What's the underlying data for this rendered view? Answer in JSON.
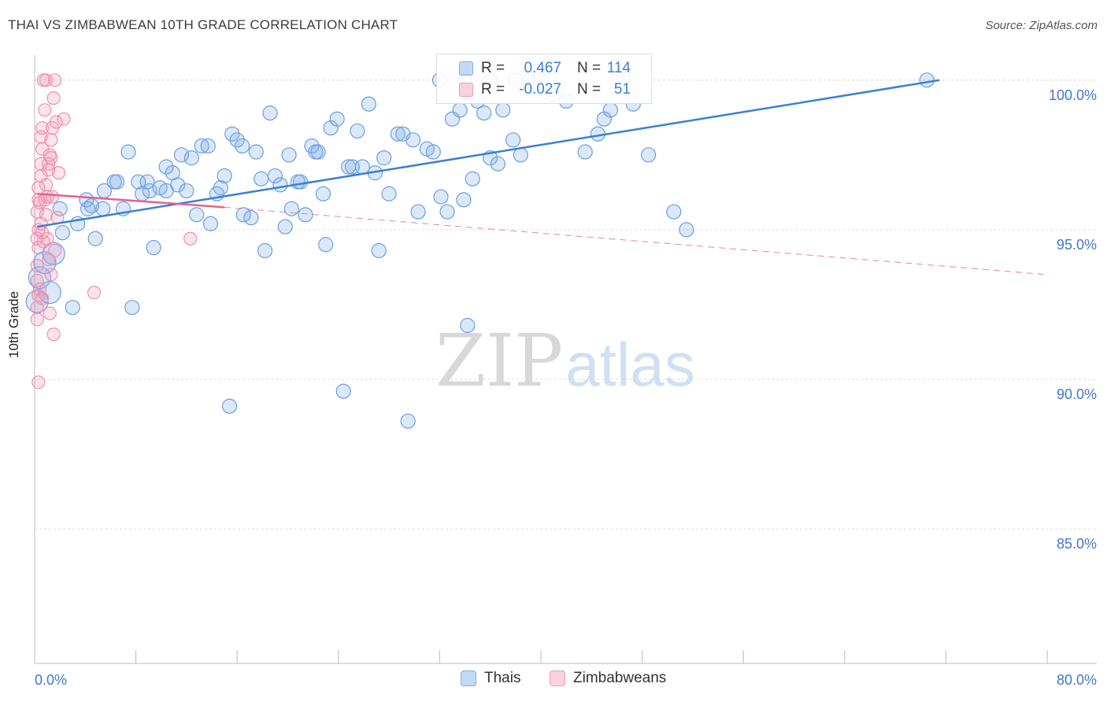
{
  "header": {
    "title": "THAI VS ZIMBABWEAN 10TH GRADE CORRELATION CHART",
    "source": "Source: ZipAtlas.com"
  },
  "watermark": {
    "part1": "ZIP",
    "part2": "atlas"
  },
  "stats": {
    "rows": [
      {
        "r_label": "R =",
        "r_value": "0.467",
        "n_label": "N =",
        "n_value": "114",
        "color": "#7aaee8"
      },
      {
        "r_label": "R =",
        "r_value": "-0.027",
        "n_label": "N =",
        "n_value": "51",
        "color": "#f29bb8"
      }
    ]
  },
  "legend": {
    "items": [
      {
        "label": "Thais",
        "color": "#7aaee8"
      },
      {
        "label": "Zimbabweans",
        "color": "#f29bb8"
      }
    ]
  },
  "colors": {
    "blue": "#3a7fd5",
    "pink": "#e8608c",
    "axis_text": "#4477cc"
  },
  "chart_data": {
    "type": "scatter",
    "title": "THAI VS ZIMBABWEAN 10TH GRADE CORRELATION CHART",
    "xlabel": "",
    "ylabel": "10th Grade",
    "xlim": [
      0,
      80
    ],
    "ylim": [
      80.5,
      100.6
    ],
    "x_tick_labels": [
      "0.0%",
      "80.0%"
    ],
    "y_ticks": [
      85,
      90,
      95,
      100
    ],
    "y_tick_labels": [
      "85.0%",
      "90.0%",
      "95.0%",
      "100.0%"
    ],
    "grid": true,
    "legend_position": "bottom",
    "series": [
      {
        "name": "Thais",
        "r": 0.467,
        "n": 114,
        "trend": {
          "x": [
            0.2,
            71.5
          ],
          "y": [
            95.1,
            100.0
          ],
          "style": "solid"
        },
        "points": [
          [
            0.2,
            92.6
          ],
          [
            0.4,
            93.4
          ],
          [
            0.8,
            93.9
          ],
          [
            1.2,
            92.9
          ],
          [
            1.5,
            94.2
          ],
          [
            2.0,
            95.7
          ],
          [
            2.2,
            94.9
          ],
          [
            3.0,
            92.4
          ],
          [
            3.4,
            95.2
          ],
          [
            4.2,
            95.7
          ],
          [
            4.8,
            94.7
          ],
          [
            4.1,
            96.0
          ],
          [
            4.5,
            95.8
          ],
          [
            5.4,
            95.7
          ],
          [
            5.5,
            96.3
          ],
          [
            6.3,
            96.6
          ],
          [
            6.5,
            96.6
          ],
          [
            7.0,
            95.7
          ],
          [
            7.4,
            97.6
          ],
          [
            7.7,
            92.4
          ],
          [
            8.2,
            96.6
          ],
          [
            8.5,
            96.2
          ],
          [
            8.9,
            96.6
          ],
          [
            9.1,
            96.3
          ],
          [
            9.4,
            94.4
          ],
          [
            9.9,
            96.4
          ],
          [
            10.4,
            96.3
          ],
          [
            10.4,
            97.1
          ],
          [
            10.9,
            96.9
          ],
          [
            11.3,
            96.5
          ],
          [
            11.6,
            97.5
          ],
          [
            12.0,
            96.3
          ],
          [
            12.4,
            97.4
          ],
          [
            12.8,
            95.5
          ],
          [
            13.2,
            97.8
          ],
          [
            13.7,
            97.8
          ],
          [
            13.9,
            95.2
          ],
          [
            14.4,
            96.2
          ],
          [
            14.7,
            96.4
          ],
          [
            15.0,
            96.8
          ],
          [
            15.4,
            89.1
          ],
          [
            15.6,
            98.2
          ],
          [
            16.0,
            98.0
          ],
          [
            16.4,
            97.8
          ],
          [
            16.5,
            95.5
          ],
          [
            17.1,
            95.4
          ],
          [
            17.5,
            97.6
          ],
          [
            17.9,
            96.7
          ],
          [
            18.2,
            94.3
          ],
          [
            18.6,
            98.9
          ],
          [
            19.0,
            96.8
          ],
          [
            19.4,
            96.5
          ],
          [
            19.8,
            95.1
          ],
          [
            20.1,
            97.5
          ],
          [
            20.3,
            95.7
          ],
          [
            20.8,
            96.6
          ],
          [
            21.0,
            96.6
          ],
          [
            21.4,
            95.5
          ],
          [
            21.9,
            97.8
          ],
          [
            22.2,
            97.6
          ],
          [
            22.4,
            97.6
          ],
          [
            22.8,
            96.2
          ],
          [
            23.0,
            94.5
          ],
          [
            23.4,
            98.4
          ],
          [
            23.9,
            98.7
          ],
          [
            24.4,
            89.6
          ],
          [
            24.8,
            97.1
          ],
          [
            25.1,
            97.1
          ],
          [
            25.5,
            98.3
          ],
          [
            25.9,
            97.1
          ],
          [
            26.4,
            99.2
          ],
          [
            26.9,
            96.9
          ],
          [
            27.2,
            94.3
          ],
          [
            27.6,
            97.4
          ],
          [
            28.0,
            96.2
          ],
          [
            28.7,
            98.2
          ],
          [
            29.1,
            98.2
          ],
          [
            29.5,
            88.6
          ],
          [
            29.9,
            98.0
          ],
          [
            30.3,
            95.6
          ],
          [
            31.0,
            97.7
          ],
          [
            31.5,
            97.6
          ],
          [
            32.1,
            96.1
          ],
          [
            32.6,
            95.6
          ],
          [
            33.0,
            98.7
          ],
          [
            33.6,
            99.0
          ],
          [
            33.9,
            96.0
          ],
          [
            34.2,
            91.8
          ],
          [
            34.6,
            96.7
          ],
          [
            35.0,
            99.3
          ],
          [
            35.5,
            98.9
          ],
          [
            36.0,
            97.4
          ],
          [
            36.6,
            97.2
          ],
          [
            37.0,
            99.0
          ],
          [
            37.8,
            98.0
          ],
          [
            38.4,
            97.5
          ],
          [
            39.0,
            100.0
          ],
          [
            40.0,
            100.0
          ],
          [
            41.0,
            99.5
          ],
          [
            42.0,
            99.3
          ],
          [
            43.5,
            97.6
          ],
          [
            44.5,
            98.2
          ],
          [
            45.0,
            98.7
          ],
          [
            45.5,
            99.0
          ],
          [
            46.5,
            100.0
          ],
          [
            47.3,
            99.2
          ],
          [
            48.5,
            97.5
          ],
          [
            50.5,
            95.6
          ],
          [
            51.5,
            95.0
          ],
          [
            70.5,
            100.0
          ],
          [
            32.0,
            100.0
          ],
          [
            34.0,
            100.0
          ],
          [
            36.0,
            100.0
          ],
          [
            38.0,
            100.0
          ]
        ]
      },
      {
        "name": "Zimbabweans",
        "r": -0.027,
        "n": 51,
        "trend": {
          "x": [
            0.2,
            15.0
          ],
          "y": [
            96.2,
            95.75
          ],
          "style": "solid"
        },
        "trend_extension": {
          "x": [
            15.0,
            80.0
          ],
          "y": [
            95.75,
            93.5
          ],
          "style": "dashed"
        },
        "points": [
          [
            0.2,
            95.6
          ],
          [
            0.3,
            95.0
          ],
          [
            0.2,
            94.7
          ],
          [
            0.3,
            94.4
          ],
          [
            0.2,
            93.8
          ],
          [
            0.2,
            93.3
          ],
          [
            0.3,
            92.8
          ],
          [
            0.2,
            92.4
          ],
          [
            0.2,
            92.0
          ],
          [
            0.3,
            89.9
          ],
          [
            0.3,
            96.0
          ],
          [
            0.3,
            96.4
          ],
          [
            0.5,
            96.8
          ],
          [
            0.5,
            97.2
          ],
          [
            0.6,
            97.7
          ],
          [
            0.5,
            98.1
          ],
          [
            0.6,
            98.4
          ],
          [
            0.8,
            99.0
          ],
          [
            0.7,
            100.0
          ],
          [
            0.9,
            100.0
          ],
          [
            1.0,
            96.1
          ],
          [
            1.1,
            97.2
          ],
          [
            1.2,
            97.5
          ],
          [
            1.3,
            98.0
          ],
          [
            1.4,
            98.4
          ],
          [
            1.5,
            99.4
          ],
          [
            1.6,
            100.0
          ],
          [
            1.7,
            98.6
          ],
          [
            0.4,
            95.9
          ],
          [
            0.8,
            96.0
          ],
          [
            0.9,
            96.5
          ],
          [
            1.1,
            97.0
          ],
          [
            1.3,
            97.4
          ],
          [
            1.4,
            96.1
          ],
          [
            1.6,
            94.3
          ],
          [
            1.8,
            95.4
          ],
          [
            1.9,
            96.9
          ],
          [
            2.3,
            98.7
          ],
          [
            0.5,
            95.2
          ],
          [
            0.6,
            94.9
          ],
          [
            0.7,
            94.6
          ],
          [
            1.0,
            94.7
          ],
          [
            1.1,
            94.0
          ],
          [
            1.3,
            93.5
          ],
          [
            1.5,
            91.5
          ],
          [
            4.7,
            92.9
          ],
          [
            12.3,
            94.7
          ],
          [
            0.4,
            93.0
          ],
          [
            0.6,
            92.7
          ],
          [
            1.2,
            92.2
          ],
          [
            0.9,
            95.5
          ]
        ]
      }
    ]
  }
}
